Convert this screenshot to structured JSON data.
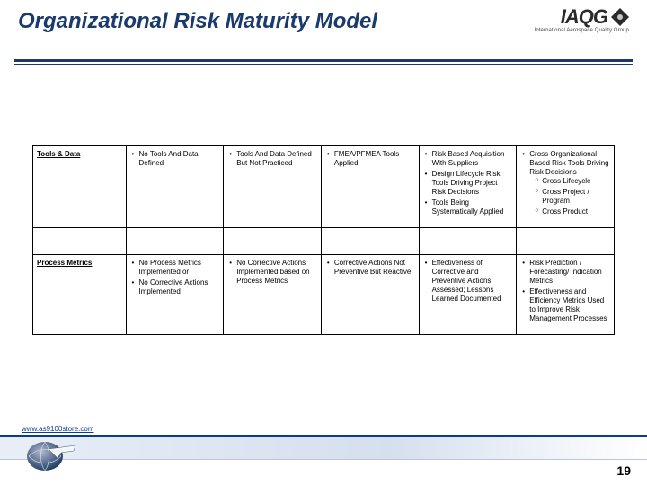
{
  "title": "Organizational Risk Maturity Model",
  "logo": {
    "text": "IAQG",
    "subtitle": "International Aerospace Quality Group"
  },
  "url": "www.as9100store.com",
  "page_number": "19",
  "table": {
    "rows": [
      {
        "header": "Tools & Data",
        "cells": [
          {
            "items": [
              {
                "text": "No Tools And Data Defined"
              }
            ]
          },
          {
            "items": [
              {
                "text": "Tools And Data Defined But Not Practiced"
              }
            ]
          },
          {
            "items": [
              {
                "text": "FMEA/PFMEA Tools Applied"
              }
            ]
          },
          {
            "items": [
              {
                "text": "Risk Based Acquisition With Suppliers"
              },
              {
                "text": "Design Lifecycle Risk Tools Driving Project Risk Decisions"
              },
              {
                "text": "Tools Being Systematically Applied"
              }
            ]
          },
          {
            "items": [
              {
                "text": "Cross Organizational Based Risk Tools Driving Risk Decisions",
                "sub": [
                  "Cross Lifecycle",
                  "Cross Project / Program",
                  "Cross Product"
                ]
              }
            ]
          }
        ]
      },
      {
        "header": "Process Metrics",
        "cells": [
          {
            "items": [
              {
                "text": "No Process Metrics Implemented or"
              },
              {
                "text": "No Corrective Actions Implemented"
              }
            ]
          },
          {
            "items": [
              {
                "text": "No Corrective Actions Implemented based on Process Metrics"
              }
            ]
          },
          {
            "items": [
              {
                "text": "Corrective Actions Not Preventive But Reactive"
              }
            ]
          },
          {
            "items": [
              {
                "text": "Effectiveness of Corrective and Preventive Actions Assessed; Lessons Learned Documented"
              }
            ]
          },
          {
            "items": [
              {
                "text": "Risk Prediction / Forecasting/ Indication Metrics"
              },
              {
                "text": "Effectiveness and Efficiency Metrics Used to Improve Risk Management Processes"
              }
            ]
          }
        ]
      }
    ]
  }
}
